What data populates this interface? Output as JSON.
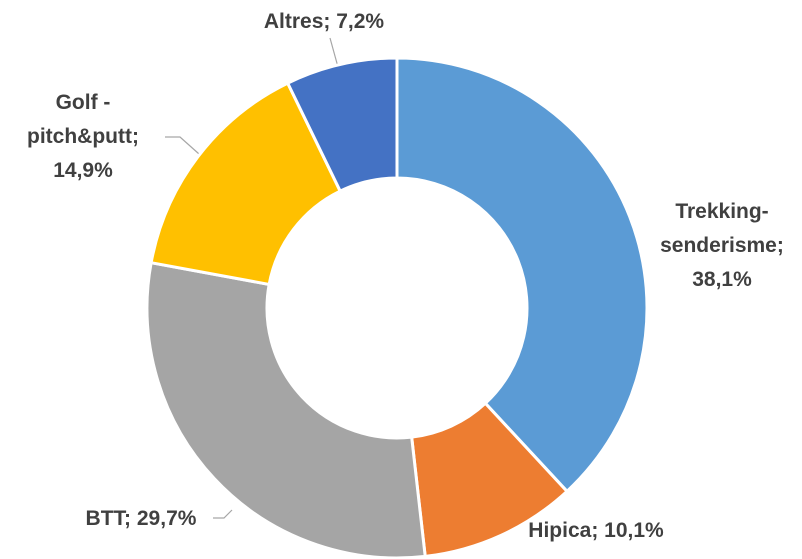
{
  "chart_data": {
    "type": "donut",
    "categories": [
      "Trekking-senderisme",
      "Hipica",
      "BTT",
      "Golf - pitch&putt",
      "Altres"
    ],
    "values": [
      38.1,
      10.1,
      29.7,
      14.9,
      7.2
    ],
    "value_labels": [
      "38,1%",
      "10,1%",
      "29,7%",
      "14,9%",
      "7,2%"
    ],
    "separator": ";",
    "colors": [
      "#5b9bd5",
      "#ed7d31",
      "#a5a5a5",
      "#ffc000",
      "#4472c4"
    ]
  }
}
